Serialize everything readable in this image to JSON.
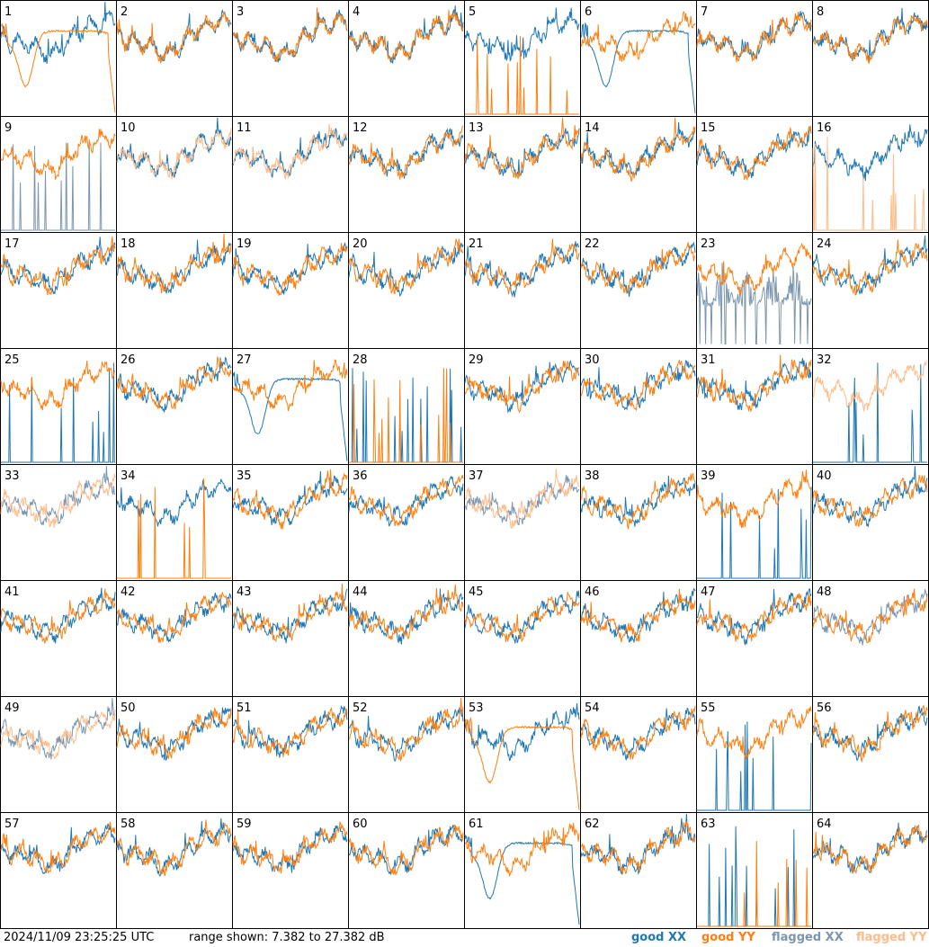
{
  "chart_data": {
    "type": "line",
    "layout": "8x8 small multiples, one panel per tile",
    "x_axis": "frequency channel (unlabeled)",
    "y_range_db": [
      7.382,
      27.382
    ],
    "grid": false,
    "series_types": [
      "good XX",
      "good YY",
      "flagged XX",
      "flagged YY"
    ],
    "colors": {
      "good_xx": "#1f77b4",
      "good_yy": "#ff7f0e",
      "flagged_xx": "#7a96b0",
      "flagged_yy": "#ffbb88"
    },
    "panels": [
      {
        "id": "1",
        "xx": "good",
        "yy": "good",
        "xx_shape": "normal",
        "yy_shape": "dip"
      },
      {
        "id": "2",
        "xx": "good",
        "yy": "good",
        "xx_shape": "normal",
        "yy_shape": "normal"
      },
      {
        "id": "3",
        "xx": "good",
        "yy": "good",
        "xx_shape": "normal",
        "yy_shape": "normal"
      },
      {
        "id": "4",
        "xx": "good",
        "yy": "good",
        "xx_shape": "normal",
        "yy_shape": "normal"
      },
      {
        "id": "5",
        "xx": "good",
        "yy": "good",
        "xx_shape": "normal",
        "yy_shape": "spikes"
      },
      {
        "id": "6",
        "xx": "good",
        "yy": "good",
        "xx_shape": "dip",
        "yy_shape": "normal"
      },
      {
        "id": "7",
        "xx": "good",
        "yy": "good",
        "xx_shape": "normal",
        "yy_shape": "normal"
      },
      {
        "id": "8",
        "xx": "good",
        "yy": "good",
        "xx_shape": "normal",
        "yy_shape": "normal"
      },
      {
        "id": "9",
        "xx": "flagged",
        "yy": "good",
        "xx_shape": "spikes",
        "yy_shape": "normal"
      },
      {
        "id": "10",
        "xx": "good",
        "yy": "flagged",
        "xx_shape": "normal",
        "yy_shape": "normal"
      },
      {
        "id": "11",
        "xx": "good",
        "yy": "flagged",
        "xx_shape": "normal",
        "yy_shape": "normal"
      },
      {
        "id": "12",
        "xx": "good",
        "yy": "good",
        "xx_shape": "normal",
        "yy_shape": "normal"
      },
      {
        "id": "13",
        "xx": "good",
        "yy": "good",
        "xx_shape": "normal",
        "yy_shape": "normal"
      },
      {
        "id": "14",
        "xx": "good",
        "yy": "good",
        "xx_shape": "normal",
        "yy_shape": "normal"
      },
      {
        "id": "15",
        "xx": "good",
        "yy": "good",
        "xx_shape": "normal",
        "yy_shape": "normal"
      },
      {
        "id": "16",
        "xx": "good",
        "yy": "flagged",
        "xx_shape": "normal",
        "yy_shape": "spikes"
      },
      {
        "id": "17",
        "xx": "good",
        "yy": "good",
        "xx_shape": "normal",
        "yy_shape": "normal"
      },
      {
        "id": "18",
        "xx": "good",
        "yy": "good",
        "xx_shape": "normal",
        "yy_shape": "normal"
      },
      {
        "id": "19",
        "xx": "good",
        "yy": "good",
        "xx_shape": "normal",
        "yy_shape": "normal"
      },
      {
        "id": "20",
        "xx": "good",
        "yy": "good",
        "xx_shape": "normal",
        "yy_shape": "normal"
      },
      {
        "id": "21",
        "xx": "good",
        "yy": "good",
        "xx_shape": "normal",
        "yy_shape": "normal"
      },
      {
        "id": "22",
        "xx": "good",
        "yy": "good",
        "xx_shape": "normal",
        "yy_shape": "normal"
      },
      {
        "id": "23",
        "xx": "flagged",
        "yy": "good",
        "xx_shape": "noisy",
        "yy_shape": "normal"
      },
      {
        "id": "24",
        "xx": "good",
        "yy": "good",
        "xx_shape": "normal",
        "yy_shape": "normal"
      },
      {
        "id": "25",
        "xx": "good",
        "yy": "good",
        "xx_shape": "spikes",
        "yy_shape": "normal"
      },
      {
        "id": "26",
        "xx": "good",
        "yy": "good",
        "xx_shape": "normal",
        "yy_shape": "normal"
      },
      {
        "id": "27",
        "xx": "good",
        "yy": "good",
        "xx_shape": "dip",
        "yy_shape": "normal"
      },
      {
        "id": "28",
        "xx": "good",
        "yy": "good",
        "xx_shape": "spikes",
        "yy_shape": "spikes"
      },
      {
        "id": "29",
        "xx": "good",
        "yy": "good",
        "xx_shape": "normal",
        "yy_shape": "normal"
      },
      {
        "id": "30",
        "xx": "good",
        "yy": "good",
        "xx_shape": "normal",
        "yy_shape": "normal"
      },
      {
        "id": "31",
        "xx": "good",
        "yy": "good",
        "xx_shape": "normal",
        "yy_shape": "normal"
      },
      {
        "id": "32",
        "xx": "good",
        "yy": "flagged",
        "xx_shape": "spikes",
        "yy_shape": "normal"
      },
      {
        "id": "33",
        "xx": "flagged",
        "yy": "flagged",
        "xx_shape": "normal",
        "yy_shape": "normal"
      },
      {
        "id": "34",
        "xx": "good",
        "yy": "good",
        "xx_shape": "normal",
        "yy_shape": "spikes"
      },
      {
        "id": "35",
        "xx": "good",
        "yy": "good",
        "xx_shape": "normal",
        "yy_shape": "normal"
      },
      {
        "id": "36",
        "xx": "good",
        "yy": "good",
        "xx_shape": "normal",
        "yy_shape": "normal"
      },
      {
        "id": "37",
        "xx": "flagged",
        "yy": "flagged",
        "xx_shape": "normal",
        "yy_shape": "normal"
      },
      {
        "id": "38",
        "xx": "good",
        "yy": "good",
        "xx_shape": "normal",
        "yy_shape": "normal"
      },
      {
        "id": "39",
        "xx": "good",
        "yy": "good",
        "xx_shape": "spikes",
        "yy_shape": "normal"
      },
      {
        "id": "40",
        "xx": "good",
        "yy": "good",
        "xx_shape": "normal",
        "yy_shape": "normal"
      },
      {
        "id": "41",
        "xx": "good",
        "yy": "good",
        "xx_shape": "normal",
        "yy_shape": "normal"
      },
      {
        "id": "42",
        "xx": "good",
        "yy": "good",
        "xx_shape": "normal",
        "yy_shape": "normal"
      },
      {
        "id": "43",
        "xx": "good",
        "yy": "good",
        "xx_shape": "normal",
        "yy_shape": "normal"
      },
      {
        "id": "44",
        "xx": "good",
        "yy": "good",
        "xx_shape": "normal",
        "yy_shape": "normal"
      },
      {
        "id": "45",
        "xx": "good",
        "yy": "good",
        "xx_shape": "normal",
        "yy_shape": "normal"
      },
      {
        "id": "46",
        "xx": "good",
        "yy": "good",
        "xx_shape": "normal",
        "yy_shape": "normal"
      },
      {
        "id": "47",
        "xx": "good",
        "yy": "good",
        "xx_shape": "normal",
        "yy_shape": "normal"
      },
      {
        "id": "48",
        "xx": "flagged",
        "yy": "good",
        "xx_shape": "normal",
        "yy_shape": "normal"
      },
      {
        "id": "49",
        "xx": "flagged",
        "yy": "flagged",
        "xx_shape": "normal",
        "yy_shape": "normal"
      },
      {
        "id": "50",
        "xx": "good",
        "yy": "good",
        "xx_shape": "normal",
        "yy_shape": "normal"
      },
      {
        "id": "51",
        "xx": "good",
        "yy": "good",
        "xx_shape": "normal",
        "yy_shape": "normal"
      },
      {
        "id": "52",
        "xx": "good",
        "yy": "good",
        "xx_shape": "normal",
        "yy_shape": "normal"
      },
      {
        "id": "53",
        "xx": "good",
        "yy": "good",
        "xx_shape": "normal",
        "yy_shape": "dip"
      },
      {
        "id": "54",
        "xx": "good",
        "yy": "good",
        "xx_shape": "normal",
        "yy_shape": "normal"
      },
      {
        "id": "55",
        "xx": "good",
        "yy": "good",
        "xx_shape": "spikes",
        "yy_shape": "normal"
      },
      {
        "id": "56",
        "xx": "good",
        "yy": "good",
        "xx_shape": "normal",
        "yy_shape": "normal"
      },
      {
        "id": "57",
        "xx": "good",
        "yy": "good",
        "xx_shape": "normal",
        "yy_shape": "normal"
      },
      {
        "id": "58",
        "xx": "good",
        "yy": "good",
        "xx_shape": "normal",
        "yy_shape": "normal"
      },
      {
        "id": "59",
        "xx": "good",
        "yy": "good",
        "xx_shape": "normal",
        "yy_shape": "normal"
      },
      {
        "id": "60",
        "xx": "good",
        "yy": "good",
        "xx_shape": "normal",
        "yy_shape": "normal"
      },
      {
        "id": "61",
        "xx": "good",
        "yy": "good",
        "xx_shape": "dip",
        "yy_shape": "normal"
      },
      {
        "id": "62",
        "xx": "good",
        "yy": "good",
        "xx_shape": "normal",
        "yy_shape": "normal"
      },
      {
        "id": "63",
        "xx": "good",
        "yy": "good",
        "xx_shape": "spikes",
        "yy_shape": "spikes"
      },
      {
        "id": "64",
        "xx": "good",
        "yy": "good",
        "xx_shape": "normal",
        "yy_shape": "normal"
      }
    ]
  },
  "footer": {
    "timestamp": "2024/11/09 23:25:25 UTC",
    "range_text": "range shown: 7.382 to 27.382 dB",
    "legend": {
      "good_xx": "good XX",
      "good_yy": "good YY",
      "flagged_xx": "flagged XX",
      "flagged_yy": "flagged YY"
    }
  }
}
